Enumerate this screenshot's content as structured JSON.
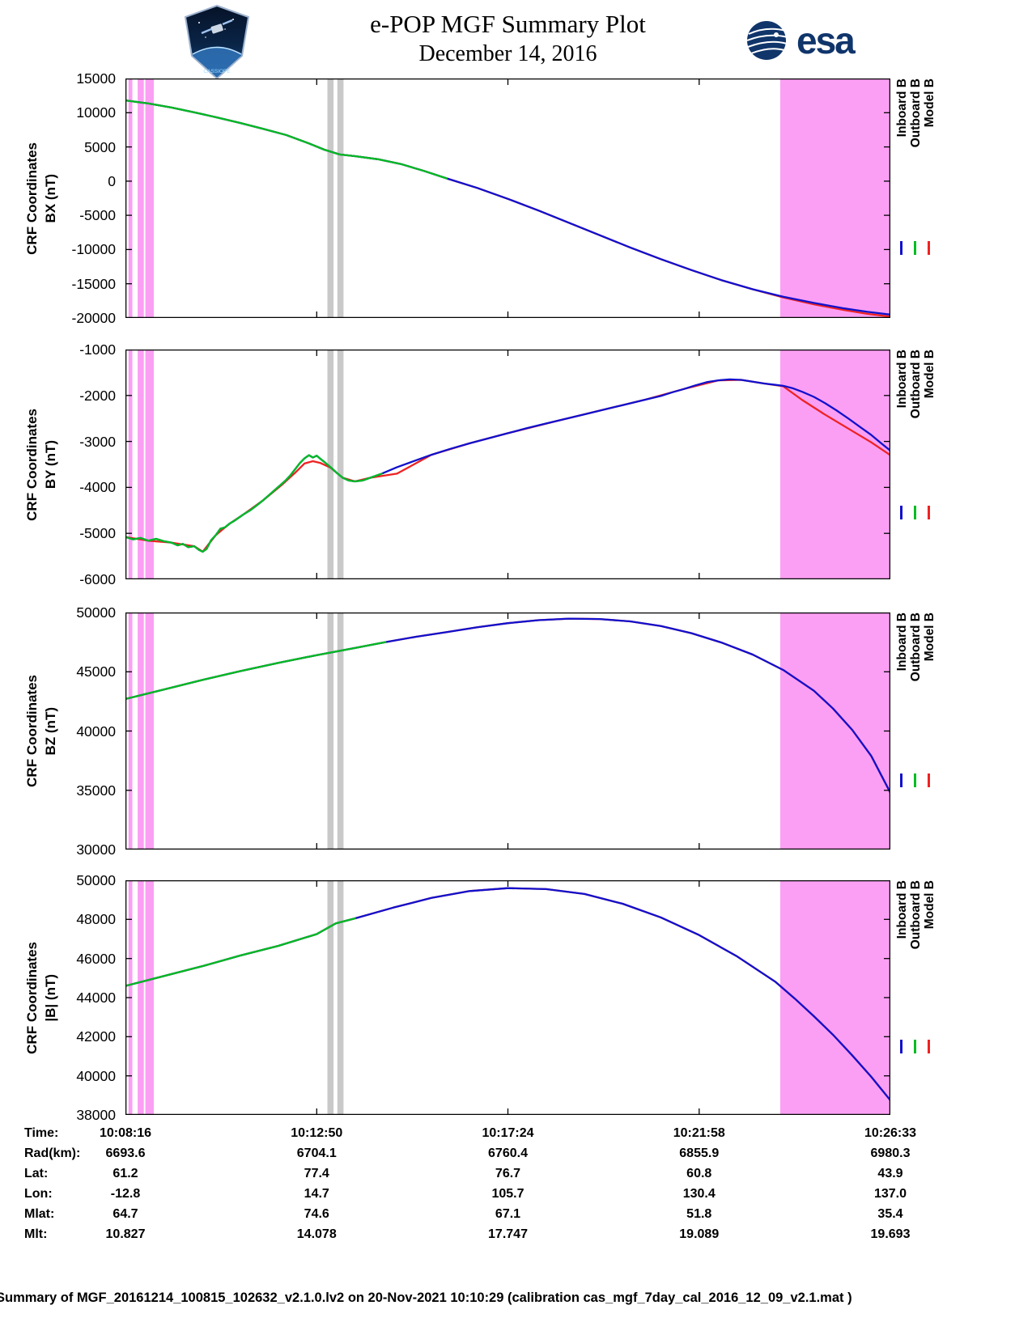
{
  "title": {
    "line1": "e-POP MGF Summary Plot",
    "line2": "December 14, 2016"
  },
  "logos": {
    "esa_text": "esa",
    "patch_text": "CASSIOPE"
  },
  "legend": {
    "items": [
      {
        "label": "Inboard B",
        "color": "#1111cc"
      },
      {
        "label": "Outboard B",
        "color": "#00bb22"
      },
      {
        "label": "Model B",
        "color": "#ee2222"
      }
    ]
  },
  "x_axis": {
    "tick_positions": [
      0,
      0.25,
      0.5,
      0.75,
      1.0
    ],
    "tick_labels": [
      "10:08:16",
      "10:12:50",
      "10:17:24",
      "10:21:58",
      "10:26:33"
    ]
  },
  "shading_bands": {
    "magenta_color": "#fb9ff4",
    "gray_color": "#c9c9c9",
    "magenta": [
      [
        0.004,
        0.009
      ],
      [
        0.016,
        0.024
      ],
      [
        0.026,
        0.037
      ],
      [
        0.856,
        1.0
      ]
    ],
    "gray": [
      [
        0.264,
        0.272
      ],
      [
        0.277,
        0.285
      ]
    ]
  },
  "chart_data": [
    {
      "type": "line",
      "component": "BX",
      "ylabel_line1": "CRF Coordinates",
      "ylabel_line2": "BX (nT)",
      "ylim": [
        -20000,
        15000
      ],
      "yticks": [
        15000,
        10000,
        5000,
        0,
        -5000,
        -10000,
        -15000,
        -20000
      ],
      "series": [
        {
          "name": "Model B",
          "color": "#ee2222",
          "x": [
            0,
            0.03,
            0.06,
            0.09,
            0.12,
            0.15,
            0.18,
            0.21,
            0.24,
            0.26,
            0.28,
            0.3,
            0.33,
            0.36,
            0.39,
            0.42,
            0.46,
            0.5,
            0.54,
            0.58,
            0.62,
            0.66,
            0.7,
            0.74,
            0.78,
            0.82,
            0.86,
            0.9,
            0.94,
            0.97,
            1.0
          ],
          "y": [
            11800,
            11350,
            10750,
            10050,
            9300,
            8500,
            7650,
            6750,
            5500,
            4600,
            3900,
            3650,
            3200,
            2500,
            1500,
            400,
            -1000,
            -2600,
            -4300,
            -6100,
            -7900,
            -9700,
            -11400,
            -13000,
            -14500,
            -15800,
            -17000,
            -18000,
            -18850,
            -19400,
            -19800
          ]
        },
        {
          "name": "Inboard B",
          "color": "#1111cc",
          "x": [
            0,
            0.03,
            0.06,
            0.09,
            0.12,
            0.15,
            0.18,
            0.21,
            0.24,
            0.26,
            0.28,
            0.3,
            0.33,
            0.36,
            0.39,
            0.42,
            0.46,
            0.5,
            0.54,
            0.58,
            0.62,
            0.66,
            0.7,
            0.74,
            0.78,
            0.82,
            0.86,
            0.9,
            0.94,
            0.97,
            1.0
          ],
          "y": [
            11800,
            11350,
            10750,
            10050,
            9300,
            8500,
            7650,
            6750,
            5500,
            4600,
            3900,
            3650,
            3200,
            2500,
            1500,
            400,
            -1000,
            -2600,
            -4300,
            -6100,
            -7900,
            -9700,
            -11400,
            -13000,
            -14500,
            -15800,
            -16900,
            -17800,
            -18600,
            -19100,
            -19500
          ]
        },
        {
          "name": "Outboard B",
          "color": "#00bb22",
          "x": [
            0,
            0.03,
            0.06,
            0.09,
            0.12,
            0.15,
            0.18,
            0.21,
            0.24,
            0.26,
            0.28,
            0.3,
            0.33,
            0.36,
            0.39,
            0.42
          ],
          "y": [
            11800,
            11350,
            10750,
            10050,
            9300,
            8500,
            7650,
            6750,
            5500,
            4600,
            3900,
            3650,
            3200,
            2500,
            1500,
            400
          ]
        }
      ]
    },
    {
      "type": "line",
      "component": "BY",
      "ylabel_line1": "CRF Coordinates",
      "ylabel_line2": "BY (nT)",
      "ylim": [
        -6000,
        -1000
      ],
      "yticks": [
        -1000,
        -2000,
        -3000,
        -4000,
        -5000,
        -6000
      ],
      "series": [
        {
          "name": "Model B",
          "color": "#ee2222",
          "x": [
            0.0,
            0.03,
            0.06,
            0.09,
            0.101,
            0.118,
            0.136,
            0.155,
            0.18,
            0.204,
            0.222,
            0.234,
            0.245,
            0.255,
            0.268,
            0.284,
            0.3,
            0.32,
            0.355,
            0.4,
            0.45,
            0.5,
            0.56,
            0.62,
            0.68,
            0.73,
            0.775,
            0.805,
            0.835,
            0.86,
            0.885,
            0.915,
            0.945,
            0.975,
            1.0
          ],
          "y": [
            -5080,
            -5160,
            -5200,
            -5280,
            -5400,
            -5040,
            -4790,
            -4580,
            -4280,
            -3950,
            -3680,
            -3480,
            -3430,
            -3470,
            -3570,
            -3790,
            -3870,
            -3790,
            -3700,
            -3290,
            -3040,
            -2820,
            -2570,
            -2330,
            -2090,
            -1860,
            -1670,
            -1660,
            -1740,
            -1800,
            -2100,
            -2420,
            -2720,
            -3020,
            -3300
          ]
        },
        {
          "name": "Inboard B",
          "color": "#1111cc",
          "x": [
            0.0,
            0.01,
            0.02,
            0.03,
            0.04,
            0.05,
            0.06,
            0.068,
            0.075,
            0.082,
            0.09,
            0.096,
            0.101,
            0.106,
            0.112,
            0.118,
            0.124,
            0.13,
            0.136,
            0.142,
            0.148,
            0.155,
            0.163,
            0.171,
            0.18,
            0.189,
            0.197,
            0.204,
            0.21,
            0.216,
            0.222,
            0.228,
            0.234,
            0.24,
            0.245,
            0.25,
            0.255,
            0.261,
            0.268,
            0.276,
            0.284,
            0.292,
            0.3,
            0.31,
            0.32,
            0.335,
            0.355,
            0.375,
            0.4,
            0.425,
            0.45,
            0.475,
            0.5,
            0.525,
            0.55,
            0.575,
            0.6,
            0.625,
            0.65,
            0.675,
            0.7,
            0.715,
            0.73,
            0.745,
            0.76,
            0.775,
            0.79,
            0.805,
            0.82,
            0.835,
            0.85,
            0.86,
            0.872,
            0.885,
            0.9,
            0.915,
            0.93,
            0.945,
            0.96,
            0.975,
            0.988,
            1.0
          ],
          "y": [
            -5080,
            -5130,
            -5100,
            -5160,
            -5120,
            -5170,
            -5200,
            -5260,
            -5230,
            -5300,
            -5280,
            -5360,
            -5400,
            -5340,
            -5150,
            -5040,
            -4900,
            -4870,
            -4790,
            -4730,
            -4660,
            -4580,
            -4500,
            -4400,
            -4280,
            -4150,
            -4030,
            -3930,
            -3840,
            -3730,
            -3600,
            -3470,
            -3370,
            -3300,
            -3350,
            -3310,
            -3380,
            -3460,
            -3560,
            -3680,
            -3790,
            -3850,
            -3870,
            -3850,
            -3790,
            -3700,
            -3560,
            -3440,
            -3290,
            -3160,
            -3040,
            -2930,
            -2820,
            -2710,
            -2610,
            -2510,
            -2410,
            -2310,
            -2210,
            -2110,
            -2010,
            -1930,
            -1860,
            -1780,
            -1710,
            -1670,
            -1650,
            -1660,
            -1700,
            -1740,
            -1770,
            -1790,
            -1840,
            -1920,
            -2030,
            -2170,
            -2330,
            -2500,
            -2680,
            -2860,
            -3040,
            -3200
          ]
        },
        {
          "name": "Outboard B",
          "color": "#00bb22",
          "x": [
            0.0,
            0.01,
            0.02,
            0.03,
            0.04,
            0.05,
            0.06,
            0.068,
            0.075,
            0.082,
            0.09,
            0.096,
            0.101,
            0.106,
            0.112,
            0.118,
            0.124,
            0.13,
            0.136,
            0.142,
            0.148,
            0.155,
            0.163,
            0.171,
            0.18,
            0.189,
            0.197,
            0.204,
            0.21,
            0.216,
            0.222,
            0.228,
            0.234,
            0.24,
            0.245,
            0.25,
            0.255,
            0.261,
            0.268,
            0.276,
            0.284,
            0.292,
            0.3,
            0.31,
            0.32,
            0.335
          ],
          "y": [
            -5080,
            -5130,
            -5100,
            -5160,
            -5120,
            -5170,
            -5200,
            -5260,
            -5230,
            -5300,
            -5280,
            -5360,
            -5400,
            -5340,
            -5150,
            -5040,
            -4900,
            -4870,
            -4790,
            -4730,
            -4660,
            -4580,
            -4500,
            -4400,
            -4280,
            -4150,
            -4030,
            -3930,
            -3840,
            -3730,
            -3600,
            -3470,
            -3370,
            -3300,
            -3350,
            -3310,
            -3380,
            -3460,
            -3560,
            -3680,
            -3790,
            -3850,
            -3870,
            -3850,
            -3790,
            -3700
          ]
        }
      ]
    },
    {
      "type": "line",
      "component": "BZ",
      "ylabel_line1": "CRF Coordinates",
      "ylabel_line2": "BZ (nT)",
      "ylim": [
        30000,
        50000
      ],
      "yticks": [
        50000,
        45000,
        40000,
        35000,
        30000
      ],
      "series": [
        {
          "name": "Model B",
          "color": "#ee2222",
          "x": [
            0,
            0.05,
            0.1,
            0.15,
            0.2,
            0.25,
            0.3,
            0.34,
            0.38,
            0.42,
            0.46,
            0.5,
            0.54,
            0.58,
            0.62,
            0.66,
            0.7,
            0.74,
            0.78,
            0.82,
            0.86,
            0.9,
            0.925,
            0.95,
            0.975,
            1.0
          ],
          "y": [
            42700,
            43500,
            44300,
            45050,
            45750,
            46400,
            47000,
            47500,
            47950,
            48350,
            48750,
            49100,
            49350,
            49480,
            49450,
            49250,
            48850,
            48250,
            47450,
            46450,
            45150,
            43400,
            41900,
            40100,
            37900,
            34800
          ]
        },
        {
          "name": "Inboard B",
          "color": "#1111cc",
          "x": [
            0,
            0.05,
            0.1,
            0.15,
            0.2,
            0.25,
            0.3,
            0.34,
            0.38,
            0.42,
            0.46,
            0.5,
            0.54,
            0.58,
            0.62,
            0.66,
            0.7,
            0.74,
            0.78,
            0.82,
            0.86,
            0.9,
            0.925,
            0.95,
            0.975,
            1.0
          ],
          "y": [
            42700,
            43500,
            44300,
            45050,
            45750,
            46400,
            47000,
            47500,
            47950,
            48350,
            48750,
            49100,
            49350,
            49480,
            49450,
            49250,
            48850,
            48250,
            47450,
            46450,
            45150,
            43400,
            41900,
            40100,
            37900,
            34800
          ]
        },
        {
          "name": "Outboard B",
          "color": "#00bb22",
          "x": [
            0,
            0.05,
            0.1,
            0.15,
            0.2,
            0.25,
            0.3,
            0.34
          ],
          "y": [
            42700,
            43500,
            44300,
            45050,
            45750,
            46400,
            47000,
            47500
          ]
        }
      ]
    },
    {
      "type": "line",
      "component": "|B|",
      "ylabel_line1": "CRF Coordinates",
      "ylabel_line2": "|B| (nT)",
      "ylim": [
        38000,
        50000
      ],
      "yticks": [
        50000,
        48000,
        46000,
        44000,
        42000,
        40000,
        38000
      ],
      "series": [
        {
          "name": "Model B",
          "color": "#ee2222",
          "x": [
            0,
            0.05,
            0.1,
            0.15,
            0.2,
            0.25,
            0.275,
            0.3,
            0.35,
            0.4,
            0.45,
            0.5,
            0.55,
            0.6,
            0.65,
            0.7,
            0.75,
            0.8,
            0.85,
            0.875,
            0.9,
            0.925,
            0.95,
            0.975,
            1.0
          ],
          "y": [
            44600,
            45100,
            45600,
            46150,
            46650,
            47250,
            47800,
            48050,
            48600,
            49100,
            49450,
            49600,
            49550,
            49300,
            48800,
            48100,
            47200,
            46100,
            44800,
            43950,
            43050,
            42100,
            41050,
            39950,
            38750
          ]
        },
        {
          "name": "Inboard B",
          "color": "#1111cc",
          "x": [
            0,
            0.05,
            0.1,
            0.15,
            0.2,
            0.25,
            0.275,
            0.3,
            0.35,
            0.4,
            0.45,
            0.5,
            0.55,
            0.6,
            0.65,
            0.7,
            0.75,
            0.8,
            0.85,
            0.875,
            0.9,
            0.925,
            0.95,
            0.975,
            1.0
          ],
          "y": [
            44600,
            45100,
            45600,
            46150,
            46650,
            47250,
            47800,
            48050,
            48600,
            49100,
            49450,
            49600,
            49550,
            49300,
            48800,
            48100,
            47200,
            46100,
            44800,
            43950,
            43050,
            42100,
            41050,
            39950,
            38750
          ]
        },
        {
          "name": "Outboard B",
          "color": "#00bb22",
          "x": [
            0,
            0.05,
            0.1,
            0.15,
            0.2,
            0.25,
            0.275,
            0.3
          ],
          "y": [
            44600,
            45100,
            45600,
            46150,
            46650,
            47250,
            47800,
            48050
          ]
        }
      ]
    }
  ],
  "table": {
    "rows": [
      {
        "label": "Time:",
        "values": [
          "10:08:16",
          "10:12:50",
          "10:17:24",
          "10:21:58",
          "10:26:33"
        ]
      },
      {
        "label": "Rad(km):",
        "values": [
          "6693.6",
          "6704.1",
          "6760.4",
          "6855.9",
          "6980.3"
        ]
      },
      {
        "label": "Lat:",
        "values": [
          "61.2",
          "77.4",
          "76.7",
          "60.8",
          "43.9"
        ]
      },
      {
        "label": "Lon:",
        "values": [
          "-12.8",
          "14.7",
          "105.7",
          "130.4",
          "137.0"
        ]
      },
      {
        "label": "Mlat:",
        "values": [
          "64.7",
          "74.6",
          "67.1",
          "51.8",
          "35.4"
        ]
      },
      {
        "label": "Mlt:",
        "values": [
          "10.827",
          "14.078",
          "17.747",
          "19.089",
          "19.693"
        ]
      }
    ]
  },
  "footer": "Summary of MGF_20161214_100815_102632_v2.1.0.lv2 on 20-Nov-2021 10:10:29 (calibration cas_mgf_7day_cal_2016_12_09_v2.1.mat )"
}
